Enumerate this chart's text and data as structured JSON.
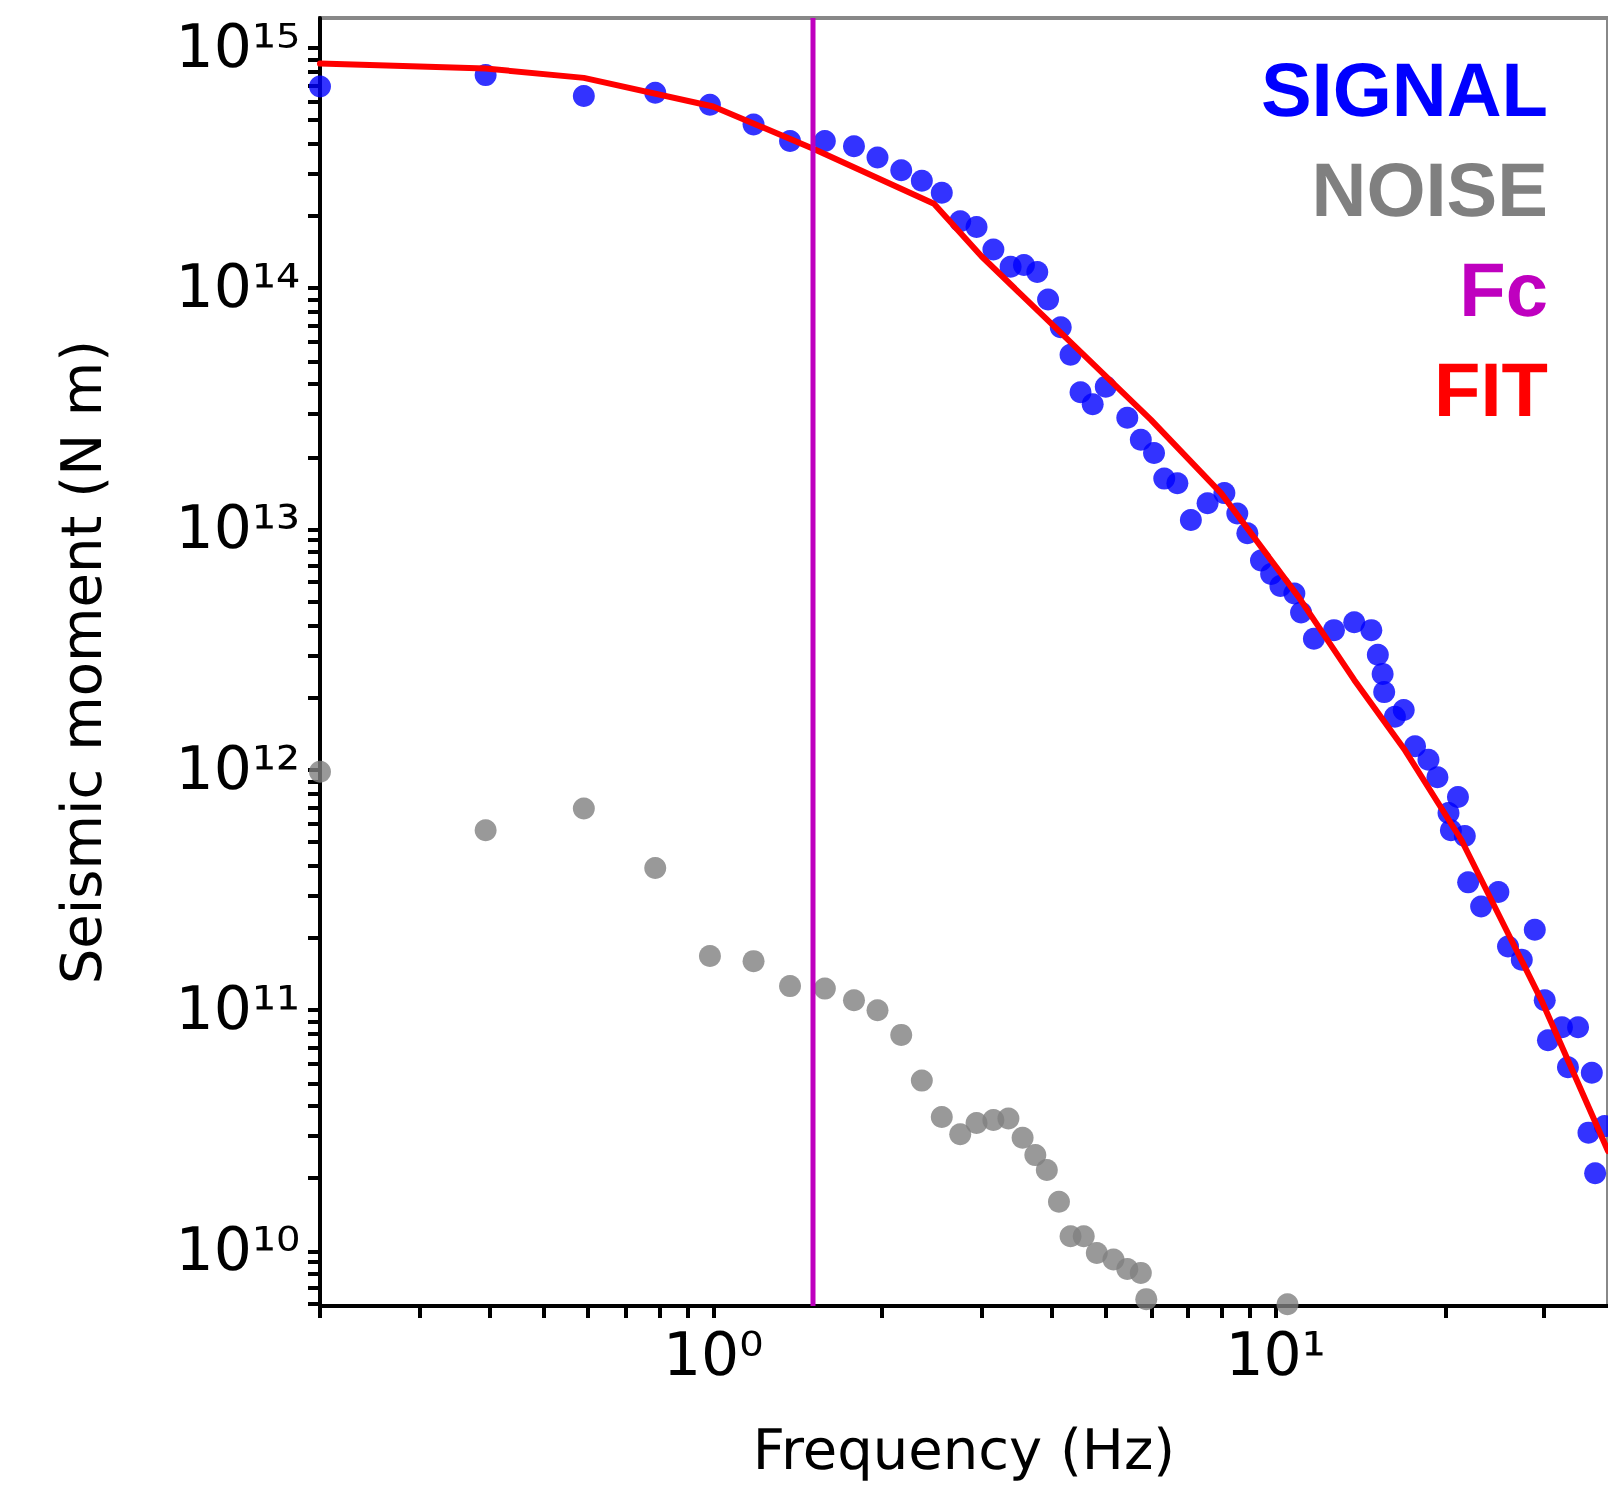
{
  "chart_data": {
    "type": "scatter",
    "xlabel": "Frequency (Hz)",
    "ylabel": "Seismic moment (N m)",
    "log": "xy",
    "grid": false,
    "legend": "top right",
    "marker": "circle",
    "xlim": [
      0.2,
      39
    ],
    "ylim": [
      5900000000.0,
      1330000000000000.0
    ],
    "xticks": [
      {
        "value": 0.2,
        "label": null
      },
      {
        "value": 0.3,
        "label": null
      },
      {
        "value": 0.4,
        "label": null
      },
      {
        "value": 0.5,
        "label": null
      },
      {
        "value": 0.6,
        "label": null
      },
      {
        "value": 0.7,
        "label": null
      },
      {
        "value": 0.8,
        "label": null
      },
      {
        "value": 0.9,
        "label": null
      },
      {
        "value": 1,
        "label": "10⁰"
      },
      {
        "value": 2,
        "label": null
      },
      {
        "value": 3,
        "label": null
      },
      {
        "value": 4,
        "label": null
      },
      {
        "value": 5,
        "label": null
      },
      {
        "value": 6,
        "label": null
      },
      {
        "value": 7,
        "label": null
      },
      {
        "value": 8,
        "label": null
      },
      {
        "value": 9,
        "label": null
      },
      {
        "value": 10,
        "label": "10¹"
      },
      {
        "value": 20,
        "label": null
      },
      {
        "value": 30,
        "label": null
      }
    ],
    "yticks": [
      {
        "value": 6000000000.0,
        "label": null
      },
      {
        "value": 7000000000.0,
        "label": null
      },
      {
        "value": 8000000000.0,
        "label": null
      },
      {
        "value": 9000000000.0,
        "label": null
      },
      {
        "value": 10000000000.0,
        "label": "10¹⁰"
      },
      {
        "value": 20000000000.0,
        "label": null
      },
      {
        "value": 30000000000.0,
        "label": null
      },
      {
        "value": 40000000000.0,
        "label": null
      },
      {
        "value": 50000000000.0,
        "label": null
      },
      {
        "value": 60000000000.0,
        "label": null
      },
      {
        "value": 70000000000.0,
        "label": null
      },
      {
        "value": 80000000000.0,
        "label": null
      },
      {
        "value": 90000000000.0,
        "label": null
      },
      {
        "value": 100000000000.0,
        "label": "10¹¹"
      },
      {
        "value": 200000000000.0,
        "label": null
      },
      {
        "value": 300000000000.0,
        "label": null
      },
      {
        "value": 400000000000.0,
        "label": null
      },
      {
        "value": 500000000000.0,
        "label": null
      },
      {
        "value": 600000000000.0,
        "label": null
      },
      {
        "value": 700000000000.0,
        "label": null
      },
      {
        "value": 800000000000.0,
        "label": null
      },
      {
        "value": 900000000000.0,
        "label": null
      },
      {
        "value": 1000000000000.0,
        "label": "10¹²"
      },
      {
        "value": 2000000000000.0,
        "label": null
      },
      {
        "value": 3000000000000.0,
        "label": null
      },
      {
        "value": 4000000000000.0,
        "label": null
      },
      {
        "value": 5000000000000.0,
        "label": null
      },
      {
        "value": 6000000000000.0,
        "label": null
      },
      {
        "value": 7000000000000.0,
        "label": null
      },
      {
        "value": 8000000000000.0,
        "label": null
      },
      {
        "value": 9000000000000.0,
        "label": null
      },
      {
        "value": 10000000000000.0,
        "label": "10¹³"
      },
      {
        "value": 20000000000000.0,
        "label": null
      },
      {
        "value": 30000000000000.0,
        "label": null
      },
      {
        "value": 40000000000000.0,
        "label": null
      },
      {
        "value": 50000000000000.0,
        "label": null
      },
      {
        "value": 60000000000000.0,
        "label": null
      },
      {
        "value": 70000000000000.0,
        "label": null
      },
      {
        "value": 80000000000000.0,
        "label": null
      },
      {
        "value": 90000000000000.0,
        "label": null
      },
      {
        "value": 100000000000000.0,
        "label": "10¹⁴"
      },
      {
        "value": 200000000000000.0,
        "label": null
      },
      {
        "value": 300000000000000.0,
        "label": null
      },
      {
        "value": 400000000000000.0,
        "label": null
      },
      {
        "value": 500000000000000.0,
        "label": null
      },
      {
        "value": 600000000000000.0,
        "label": null
      },
      {
        "value": 700000000000000.0,
        "label": null
      },
      {
        "value": 800000000000000.0,
        "label": null
      },
      {
        "value": 900000000000000.0,
        "label": null
      },
      {
        "value": 1000000000000000.0,
        "label": "10¹⁵"
      }
    ],
    "ref_lines": [
      {
        "axis": "x",
        "value": 1.5,
        "label": "Fc",
        "color": "#bf00bf",
        "line_style": "solid"
      }
    ],
    "series": [
      {
        "name": "SIGNAL",
        "color": "#0000ff",
        "x": [
          0.2,
          0.394,
          0.589,
          0.789,
          0.987,
          1.18,
          1.37,
          1.58,
          1.78,
          1.96,
          2.16,
          2.35,
          2.55,
          2.75,
          2.94,
          3.15,
          3.38,
          3.57,
          3.77,
          3.94,
          4.15,
          4.32,
          4.5,
          4.73,
          4.99,
          5.45,
          5.76,
          6.08,
          6.34,
          6.69,
          7.07,
          7.57,
          8.11,
          8.55,
          8.91,
          9.42,
          9.82,
          10.2,
          10.8,
          11.1,
          11.7,
          12.7,
          13.8,
          14.8,
          15.2,
          15.5,
          15.6,
          16.3,
          16.9,
          17.7,
          18.7,
          19.4,
          20.3,
          21.1,
          20.5,
          21.7,
          22.0,
          23.2,
          24.9,
          25.9,
          27.4,
          28.9,
          30.1,
          30.5,
          32.3,
          34.5,
          33.1,
          36.5,
          36.0,
          37,
          38.5
        ],
        "values": [
          690000000000000.0,
          770000000000000.0,
          630000000000000.0,
          650000000000000.0,
          580000000000000.0,
          480000000000000.0,
          410000000000000.0,
          410000000000000.0,
          390000000000000.0,
          350000000000000.0,
          310000000000000.0,
          280000000000000.0,
          250000000000000.0,
          190000000000000.0,
          180000000000000.0,
          145000000000000.0,
          123000000000000.0,
          125000000000000.0,
          117000000000000.0,
          90000000000000.0,
          69000000000000.0,
          53000000000000.0,
          37000000000000.0,
          33000000000000.0,
          39000000000000.0,
          29000000000000.0,
          23500000000000.0,
          20700000000000.0,
          16200000000000.0,
          15500000000000.0,
          10900000000000.0,
          12800000000000.0,
          14100000000000.0,
          11600000000000.0,
          9600000000000.0,
          7400000000000.0,
          6500000000000.0,
          5800000000000.0,
          5400000000000.0,
          4500000000000.0,
          3500000000000.0,
          3800000000000.0,
          4100000000000.0,
          3800000000000.0,
          3000000000000.0,
          2500000000000.0,
          2100000000000.0,
          1660000000000.0,
          1770000000000.0,
          1250000000000.0,
          1100000000000.0,
          930000000000.0,
          660000000000.0,
          770000000000.0,
          560000000000.0,
          530000000000.0,
          340000000000.0,
          270000000000.0,
          310000000000.0,
          184000000000.0,
          162000000000.0,
          216000000000.0,
          110000000000.0,
          75000000000.0,
          85000000000.0,
          85000000000.0,
          58000000000.0,
          55000000000.0,
          31000000000.0,
          21000000000.0,
          33000000000.0
        ]
      },
      {
        "name": "NOISE",
        "color": "#808080",
        "x": [
          0.2,
          0.394,
          0.589,
          0.789,
          0.987,
          1.18,
          1.37,
          1.58,
          1.78,
          1.96,
          2.16,
          2.35,
          2.55,
          2.75,
          2.94,
          3.15,
          3.35,
          3.55,
          3.74,
          3.92,
          4.12,
          4.32,
          4.56,
          4.81,
          5.15,
          5.45,
          5.76,
          5.89,
          10.5
        ],
        "values": [
          980000000000.0,
          560000000000.0,
          690000000000.0,
          390000000000.0,
          168000000000.0,
          160000000000.0,
          126000000000.0,
          123000000000.0,
          110000000000.0,
          100000000000.0,
          79000000000.0,
          51000000000.0,
          36000000000.0,
          30500000000.0,
          34000000000.0,
          35000000000.0,
          35500000000.0,
          29500000000.0,
          25000000000.0,
          21700000000.0,
          16000000000.0,
          11500000000.0,
          11500000000.0,
          9800000000.0,
          9200000000.0,
          8400000000.0,
          8100000000.0,
          6300000000.0,
          6000000000.0
        ]
      },
      {
        "name": "FIT",
        "type": "line",
        "marker": "none",
        "color": "#ff0000",
        "x": [
          0.2,
          0.394,
          0.589,
          1.0,
          1.51,
          2.47,
          3.0,
          4.04,
          6.0,
          8.0,
          11.0,
          13.8,
          17.0,
          21.4,
          29.7,
          39
        ],
        "values": [
          860000000000000.0,
          820000000000000.0,
          750000000000000.0,
          570000000000000.0,
          380000000000000.0,
          225000000000000.0,
          136000000000000.0,
          69500000000000.0,
          28500000000000.0,
          14100000000000.0,
          5200000000000.0,
          2360000000000.0,
          1200000000000.0,
          510000000000.0,
          110000000000.0,
          26000000000.0
        ]
      }
    ]
  }
}
